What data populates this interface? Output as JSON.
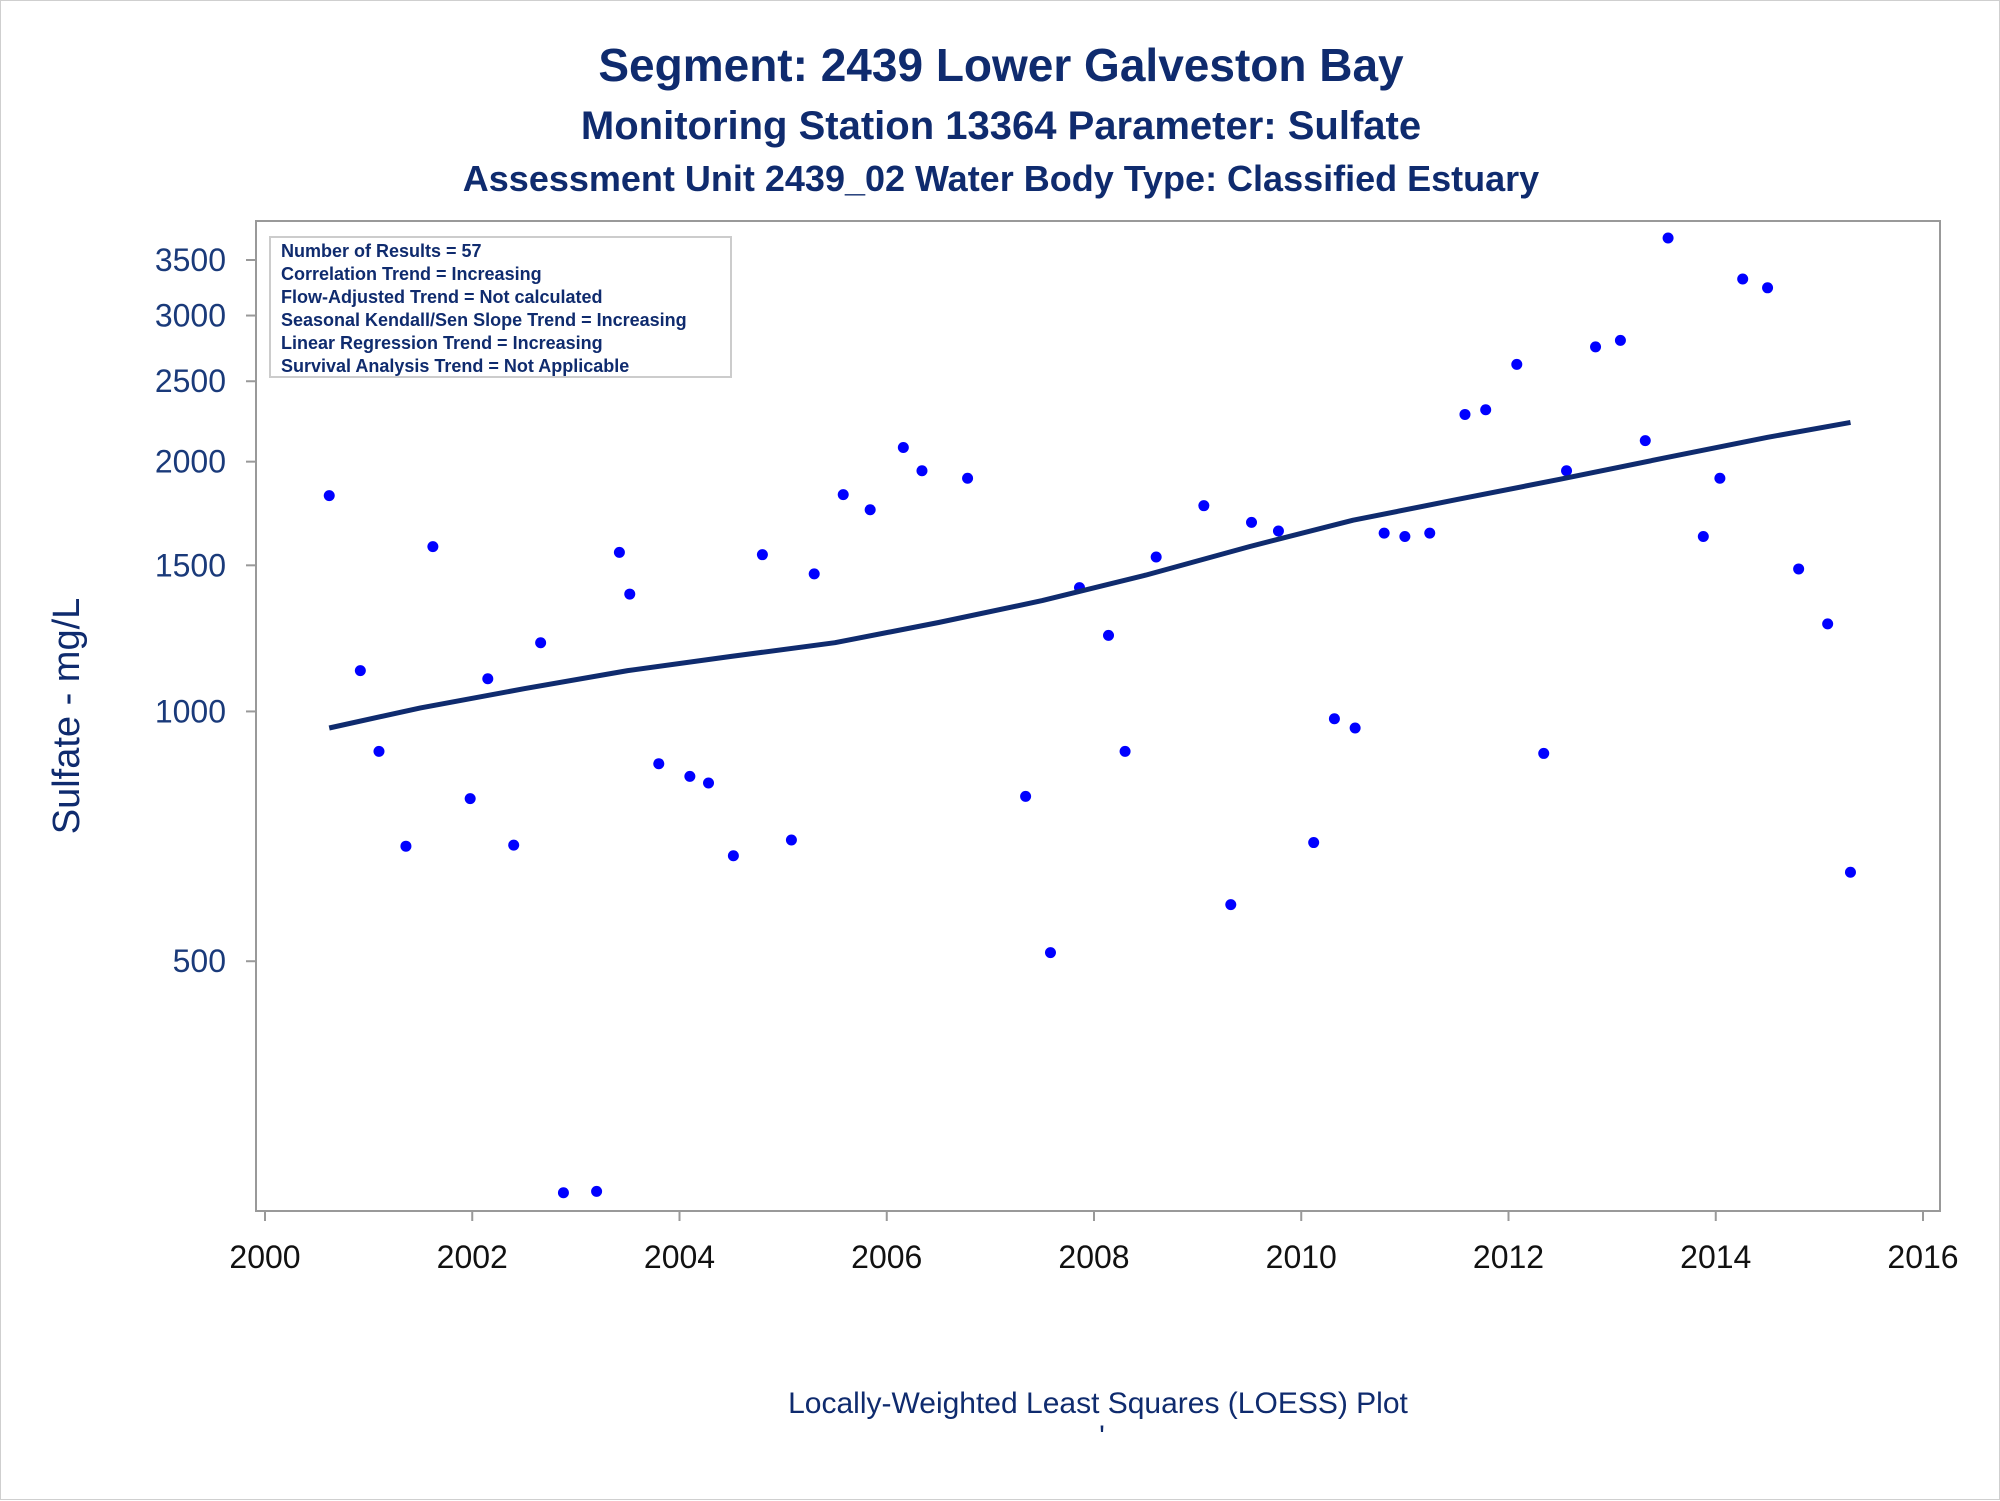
{
  "chart_data": {
    "type": "scatter",
    "title": "Segment: 2439  Lower Galveston Bay",
    "subtitle": "Monitoring Station 13364 Parameter: Sulfate",
    "subtitle2": "Assessment Unit 2439_02   Water Body Type: Classified Estuary",
    "xlabel": "",
    "ylabel": "Sulfate - mg/L",
    "footnote": "Locally-Weighted Least Squares (LOESS) Plot",
    "footnote_mark": "'",
    "y_scale": "log",
    "xlim": [
      2000,
      2016
    ],
    "ylim": [
      250,
      3900
    ],
    "x_ticks": [
      2000,
      2002,
      2004,
      2006,
      2008,
      2010,
      2012,
      2014,
      2016
    ],
    "y_ticks": [
      500,
      1000,
      1500,
      2000,
      2500,
      3000,
      3500
    ],
    "grid": false,
    "stats_box": [
      "Number of Results = 57",
      "Correlation Trend = Increasing",
      "Flow-Adjusted Trend = Not calculated",
      "Seasonal Kendall/Sen Slope Trend = Increasing",
      "Linear Regression Trend = Increasing",
      "Survival Analysis Trend = Not Applicable"
    ],
    "colors": {
      "points": "#0000ff",
      "trend": "#0f2b6e",
      "text": "#0f2b6e"
    },
    "series": [
      {
        "type": "scatter",
        "x": [
          2000.62,
          2000.92,
          2001.1,
          2001.36,
          2001.62,
          2001.98,
          2002.15,
          2002.4,
          2002.66,
          2002.88,
          2003.2,
          2003.42,
          2003.52,
          2003.8,
          2004.1,
          2004.28,
          2004.52,
          2004.8,
          2005.08,
          2005.3,
          2005.58,
          2005.84,
          2006.16,
          2006.34,
          2006.78,
          2007.34,
          2007.58,
          2007.86,
          2008.14,
          2008.3,
          2008.6,
          2009.06,
          2009.32,
          2009.52,
          2009.78,
          2010.12,
          2010.32,
          2010.52,
          2010.8,
          2011.0,
          2011.24,
          2011.58,
          2011.78,
          2012.08,
          2012.34,
          2012.56,
          2012.84,
          2013.08,
          2013.32,
          2013.54,
          2013.88,
          2014.04,
          2014.26,
          2014.5,
          2014.8,
          2015.08,
          2015.3
        ],
        "y": [
          1820,
          1120,
          895,
          688,
          1580,
          785,
          1095,
          690,
          1210,
          263,
          264,
          1555,
          1385,
          865,
          835,
          820,
          670,
          1545,
          700,
          1465,
          1825,
          1750,
          2080,
          1950,
          1910,
          790,
          512,
          1410,
          1235,
          895,
          1535,
          1770,
          585,
          1690,
          1650,
          695,
          980,
          955,
          1640,
          1625,
          1640,
          2280,
          2310,
          2620,
          890,
          1950,
          2750,
          2800,
          2120,
          3720,
          1625,
          1910,
          3320,
          3240,
          1485,
          1275,
          640
        ]
      },
      {
        "type": "line",
        "name": "",
        "x": [
          2000.62,
          2001.5,
          2002.5,
          2003.5,
          2004.5,
          2005.5,
          2006.5,
          2007.5,
          2008.5,
          2009.5,
          2010.5,
          2011.5,
          2012.5,
          2013.5,
          2014.5,
          2015.3
        ],
        "y": [
          955,
          1010,
          1065,
          1120,
          1165,
          1210,
          1280,
          1360,
          1460,
          1580,
          1700,
          1800,
          1905,
          2020,
          2140,
          2230
        ]
      }
    ]
  }
}
